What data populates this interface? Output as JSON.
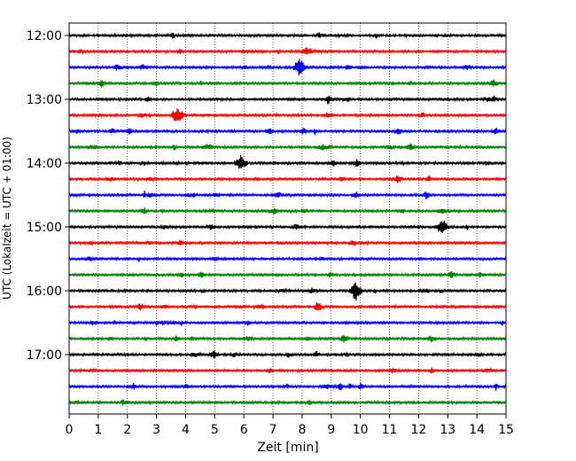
{
  "chart_data": {
    "type": "line",
    "title": "",
    "xlabel": "Zeit  [min]",
    "ylabel": "UTC (Lokalzeit = UTC + 01:00)",
    "xlim": [
      0,
      15
    ],
    "x_ticks": [
      "0",
      "1",
      "2",
      "3",
      "4",
      "5",
      "6",
      "7",
      "8",
      "9",
      "10",
      "11",
      "12",
      "13",
      "14",
      "15"
    ],
    "y_ticks": [
      "12:00",
      "13:00",
      "14:00",
      "15:00",
      "16:00",
      "17:00"
    ],
    "grid": "vertical dotted",
    "trace_colors": [
      "#000000",
      "#ff0000",
      "#0000ff",
      "#008000"
    ],
    "trace_start_times": [
      "12:00",
      "12:15",
      "12:30",
      "12:45",
      "13:00",
      "13:15",
      "13:30",
      "13:45",
      "14:00",
      "14:15",
      "14:30",
      "14:45",
      "15:00",
      "15:15",
      "15:30",
      "15:45",
      "16:00",
      "16:15",
      "16:30",
      "16:45",
      "17:00",
      "17:15",
      "17:30",
      "17:45"
    ],
    "notable_events": [
      {
        "trace": "12:30",
        "minute": 7.9
      },
      {
        "trace": "13:15",
        "minute": 3.7
      },
      {
        "trace": "14:00",
        "minute": 5.9
      },
      {
        "trace": "15:00",
        "minute": 12.8
      },
      {
        "trace": "16:00",
        "minute": 9.85
      }
    ]
  }
}
